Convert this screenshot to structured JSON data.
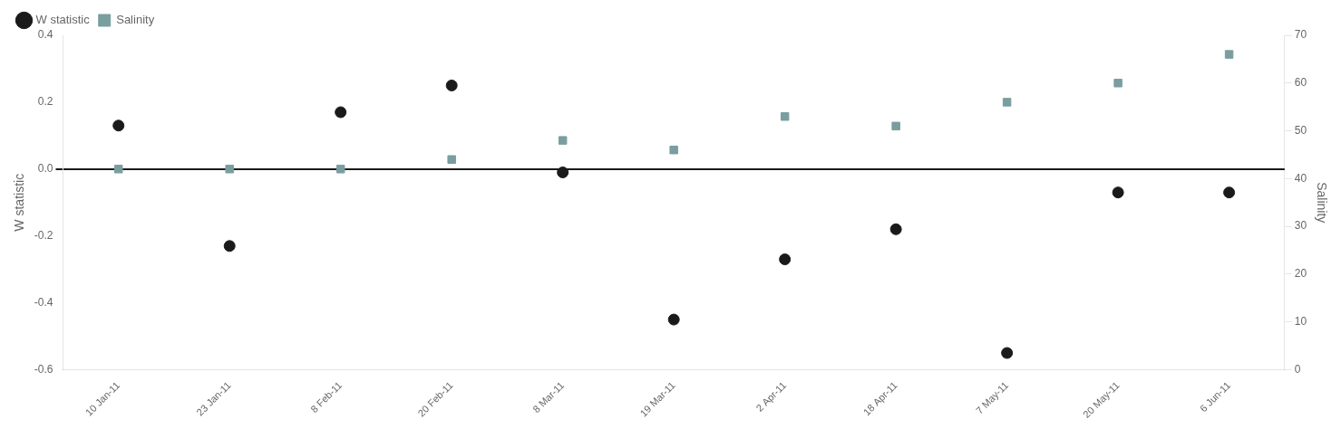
{
  "chart_data": {
    "type": "scatter",
    "categories": [
      "10 Jan-11",
      "23 Jan-11",
      "8 Feb-11",
      "20 Feb-11",
      "8 Mar-11",
      "19 Mar-11",
      "2 Apr-11",
      "18 Apr-11",
      "7 May-11",
      "20 May-11",
      "6 Jun-11"
    ],
    "series": [
      {
        "name": "W statistic",
        "color": "#1a1a1a",
        "marker": "circle",
        "values": [
          0.13,
          -0.23,
          0.17,
          0.25,
          -0.01,
          -0.45,
          -0.27,
          -0.18,
          -0.55,
          -0.07,
          -0.07
        ]
      },
      {
        "name": "Salinity",
        "color": "#7a9e9f",
        "marker": "square",
        "axis": "y2",
        "values": [
          42,
          42,
          42,
          44,
          48,
          46,
          53,
          51,
          56,
          60,
          66
        ]
      }
    ],
    "ylabel": "W statistic",
    "y2label": "Salinity",
    "ylim": [
      -0.6,
      0.4
    ],
    "yticks": [
      -0.6,
      -0.4,
      -0.2,
      {
        "value": 0,
        "label": "0.0"
      },
      0.2,
      0.4
    ],
    "y2lim": [
      0,
      70
    ],
    "y2ticks": [
      0,
      10,
      20,
      30,
      40,
      50,
      60,
      70
    ],
    "grid": false,
    "legend": "upper left"
  }
}
